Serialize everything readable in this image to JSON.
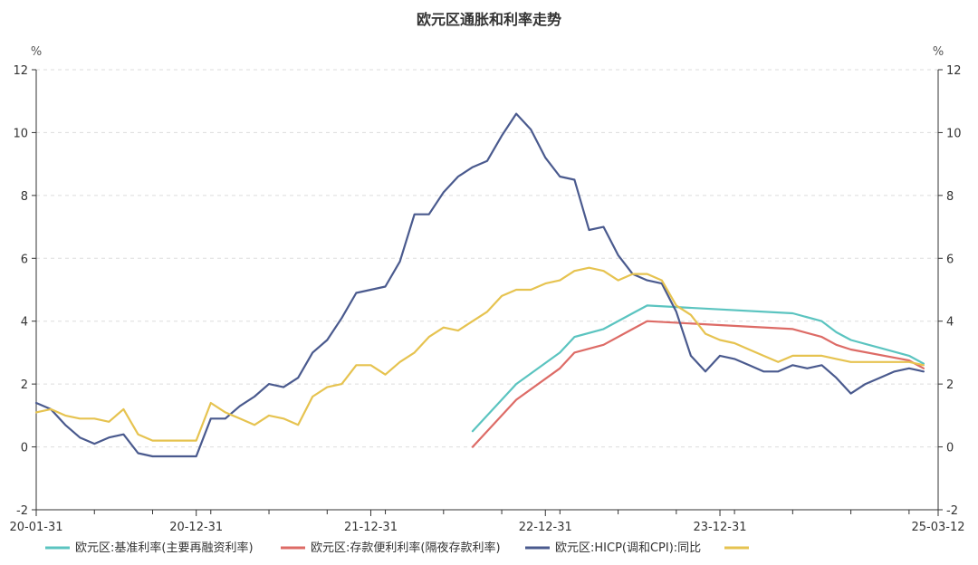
{
  "chart_data": {
    "type": "line",
    "title": "欧元区通胀和利率走势",
    "left_unit": "%",
    "right_unit": "%",
    "ylim": [
      -2,
      12
    ],
    "yticks": [
      -2,
      0,
      2,
      4,
      6,
      8,
      10,
      12
    ],
    "x_start_month": "2020-01",
    "x_end_month": "2025-03",
    "xtick_labels": [
      "20-01-31",
      "20-12-31",
      "21-12-31",
      "22-12-31",
      "23-12-31",
      "25-03-12"
    ],
    "xtick_months": [
      0,
      11,
      23,
      35,
      47,
      62
    ],
    "grid": true,
    "legend_position": "bottom",
    "series": [
      {
        "name": "欧元区:基准利率(主要再融资利率)",
        "color": "#5bc4c0",
        "points": [
          [
            30,
            0.5
          ],
          [
            33,
            2.0
          ],
          [
            36,
            3.0
          ],
          [
            37,
            3.5
          ],
          [
            39,
            3.75
          ],
          [
            41,
            4.25
          ],
          [
            42,
            4.5
          ],
          [
            52,
            4.25
          ],
          [
            54,
            4.0
          ],
          [
            55,
            3.65
          ],
          [
            56,
            3.4
          ],
          [
            58,
            3.15
          ],
          [
            60,
            2.9
          ],
          [
            61,
            2.65
          ]
        ]
      },
      {
        "name": "欧元区:存款便利利率(隔夜存款利率)",
        "color": "#dd6b66",
        "points": [
          [
            30,
            0.0
          ],
          [
            33,
            1.5
          ],
          [
            36,
            2.5
          ],
          [
            37,
            3.0
          ],
          [
            39,
            3.25
          ],
          [
            41,
            3.75
          ],
          [
            42,
            4.0
          ],
          [
            52,
            3.75
          ],
          [
            54,
            3.5
          ],
          [
            55,
            3.25
          ],
          [
            56,
            3.1
          ],
          [
            60,
            2.75
          ],
          [
            61,
            2.5
          ]
        ]
      },
      {
        "name": "欧元区:HICP(调和CPI):同比",
        "color": "#4a5a8e",
        "values": [
          1.4,
          1.2,
          0.7,
          0.3,
          0.1,
          0.3,
          0.4,
          -0.2,
          -0.3,
          -0.3,
          -0.3,
          -0.3,
          0.9,
          0.9,
          1.3,
          1.6,
          2.0,
          1.9,
          2.2,
          3.0,
          3.4,
          4.1,
          4.9,
          5.0,
          5.1,
          5.9,
          7.4,
          7.4,
          8.1,
          8.6,
          8.9,
          9.1,
          9.9,
          10.6,
          10.1,
          9.2,
          8.6,
          8.5,
          6.9,
          7.0,
          6.1,
          5.5,
          5.3,
          5.2,
          4.3,
          2.9,
          2.4,
          2.9,
          2.8,
          2.6,
          2.4,
          2.4,
          2.6,
          2.5,
          2.6,
          2.2,
          1.7,
          2.0,
          2.2,
          2.4,
          2.5,
          2.4
        ]
      },
      {
        "name": "",
        "color": "#e6c350",
        "values": [
          1.1,
          1.2,
          1.0,
          0.9,
          0.9,
          0.8,
          1.2,
          0.4,
          0.2,
          0.2,
          0.2,
          0.2,
          1.4,
          1.1,
          0.9,
          0.7,
          1.0,
          0.9,
          0.7,
          1.6,
          1.9,
          2.0,
          2.6,
          2.6,
          2.3,
          2.7,
          3.0,
          3.5,
          3.8,
          3.7,
          4.0,
          4.3,
          4.8,
          5.0,
          5.0,
          5.2,
          5.3,
          5.6,
          5.7,
          5.6,
          5.3,
          5.5,
          5.5,
          5.3,
          4.5,
          4.2,
          3.6,
          3.4,
          3.3,
          3.1,
          2.9,
          2.7,
          2.9,
          2.9,
          2.9,
          2.8,
          2.7,
          2.7,
          2.7,
          2.7,
          2.7,
          2.6
        ]
      }
    ]
  }
}
